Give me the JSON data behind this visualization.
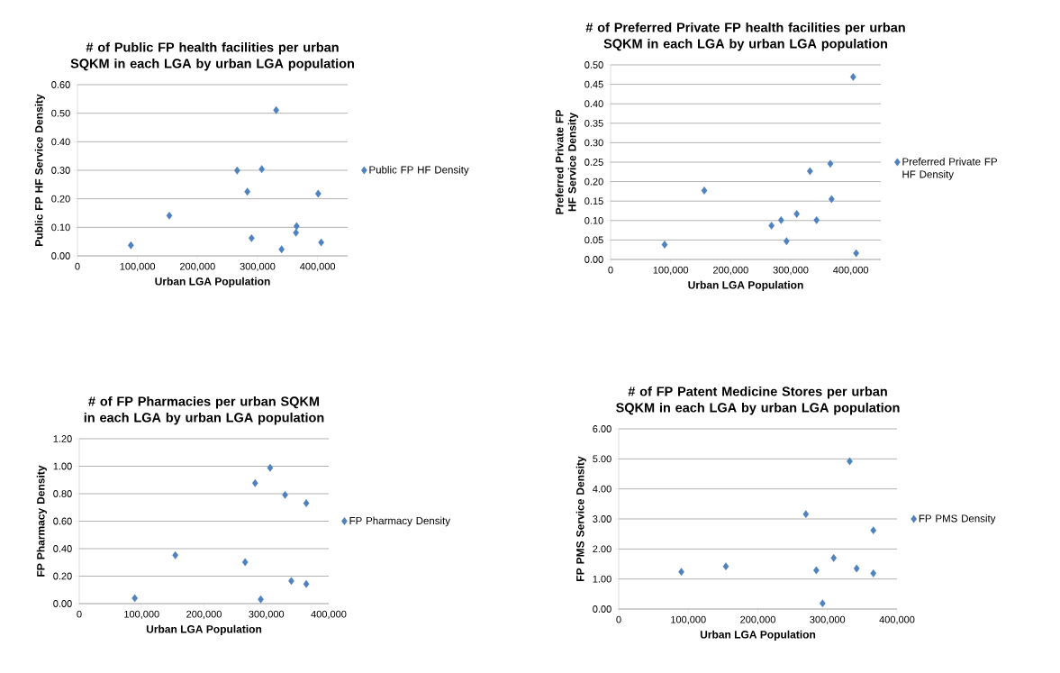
{
  "chart_data": [
    {
      "type": "scatter",
      "title": "# of Public FP health facilities per urban SQKM in each LGA by urban LGA population",
      "xlabel": "Urban LGA Population",
      "ylabel": "Public FP HF Service Density",
      "x": [
        89000,
        153000,
        266000,
        283000,
        307000,
        331000,
        290000,
        340000,
        365000,
        364000,
        401000,
        406000
      ],
      "series": [
        {
          "name": "Public FP HF Density",
          "color": "#4f81bd",
          "values": [
            0.037,
            0.141,
            0.299,
            0.225,
            0.304,
            0.511,
            0.062,
            0.023,
            0.104,
            0.081,
            0.218,
            0.047
          ]
        }
      ],
      "xlim": [
        0,
        450000
      ],
      "xticks": [
        0,
        {
          "value": 100000,
          "label": "100,000"
        },
        {
          "value": 200000,
          "label": "200,000"
        },
        {
          "value": 300000,
          "label": "300,000"
        },
        {
          "value": 400000,
          "label": "400,000"
        }
      ],
      "ylim": [
        0,
        0.6
      ],
      "yticks": [
        {
          "value": 0,
          "label": "0.00"
        },
        {
          "value": 0.1,
          "label": "0.10"
        },
        {
          "value": 0.2,
          "label": "0.20"
        },
        {
          "value": 0.3,
          "label": "0.30"
        },
        {
          "value": 0.4,
          "label": "0.40"
        },
        {
          "value": 0.5,
          "label": "0.50"
        },
        {
          "value": 0.6,
          "label": "0.60"
        }
      ],
      "grid": "y",
      "legend": "right",
      "marker": "diamond"
    },
    {
      "type": "scatter",
      "title": "# of Preferred Private FP health facilities per urban SQKM in each LGA by urban LGA population",
      "xlabel": "Urban LGA Population",
      "ylabel": "Preferred Private FP HF Service Density",
      "x": [
        90000,
        156000,
        268000,
        284000,
        293000,
        310000,
        332000,
        343000,
        366000,
        368000,
        404000,
        409000
      ],
      "series": [
        {
          "name": "Preferred Private FP HF Density",
          "color": "#4f81bd",
          "values": [
            0.038,
            0.177,
            0.087,
            0.101,
            0.047,
            0.117,
            0.227,
            0.101,
            0.246,
            0.155,
            0.469,
            0.016
          ]
        }
      ],
      "xlim": [
        0,
        450000
      ],
      "xticks": [
        0,
        {
          "value": 100000,
          "label": "100,000"
        },
        {
          "value": 200000,
          "label": "200,000"
        },
        {
          "value": 300000,
          "label": "300,000"
        },
        {
          "value": 400000,
          "label": "400,000"
        }
      ],
      "ylim": [
        0,
        0.5
      ],
      "yticks": [
        {
          "value": 0,
          "label": "0.00"
        },
        {
          "value": 0.05,
          "label": "0.05"
        },
        {
          "value": 0.1,
          "label": "0.10"
        },
        {
          "value": 0.15,
          "label": "0.15"
        },
        {
          "value": 0.2,
          "label": "0.20"
        },
        {
          "value": 0.25,
          "label": "0.25"
        },
        {
          "value": 0.3,
          "label": "0.30"
        },
        {
          "value": 0.35,
          "label": "0.35"
        },
        {
          "value": 0.4,
          "label": "0.40"
        },
        {
          "value": 0.45,
          "label": "0.45"
        },
        {
          "value": 0.5,
          "label": "0.50"
        }
      ],
      "grid": "y",
      "legend": "right",
      "marker": "diamond"
    },
    {
      "type": "scatter",
      "title": "# of FP Pharmacies per urban SQKM in each LGA by urban LGA population",
      "xlabel": "Urban LGA Population",
      "ylabel": "FP Pharmacy Density",
      "x": [
        89000,
        154000,
        266000,
        282000,
        291000,
        306000,
        330000,
        340000,
        364000,
        364000
      ],
      "series": [
        {
          "name": "FP Pharmacy Density",
          "color": "#4f81bd",
          "values": [
            0.04,
            0.352,
            0.302,
            0.877,
            0.031,
            0.989,
            0.791,
            0.165,
            0.731,
            0.143
          ]
        }
      ],
      "xlim": [
        0,
        400000
      ],
      "xticks": [
        0,
        {
          "value": 100000,
          "label": "100,000"
        },
        {
          "value": 200000,
          "label": "200,000"
        },
        {
          "value": 300000,
          "label": "300,000"
        },
        {
          "value": 400000,
          "label": "400,000"
        }
      ],
      "ylim": [
        0,
        1.2
      ],
      "yticks": [
        {
          "value": 0,
          "label": "0.00"
        },
        {
          "value": 0.2,
          "label": "0.20"
        },
        {
          "value": 0.4,
          "label": "0.40"
        },
        {
          "value": 0.6,
          "label": "0.60"
        },
        {
          "value": 0.8,
          "label": "0.80"
        },
        {
          "value": 1.0,
          "label": "1.00"
        },
        {
          "value": 1.2,
          "label": "1.20"
        }
      ],
      "grid": "y",
      "legend": "right",
      "marker": "diamond"
    },
    {
      "type": "scatter",
      "title": "# of FP Patent Medicine Stores per urban SQKM in each LGA by urban LGA population",
      "xlabel": "Urban LGA Population",
      "ylabel": "FP PMS Service Density",
      "x": [
        90000,
        154000,
        269000,
        284000,
        293000,
        309000,
        332000,
        342000,
        366000,
        366000
      ],
      "series": [
        {
          "name": "FP PMS Density",
          "color": "#4f81bd",
          "values": [
            1.24,
            1.42,
            3.16,
            1.29,
            0.19,
            1.7,
            4.92,
            1.35,
            2.62,
            1.19
          ]
        }
      ],
      "xlim": [
        0,
        400000
      ],
      "xticks": [
        0,
        {
          "value": 100000,
          "label": "100,000"
        },
        {
          "value": 200000,
          "label": "200,000"
        },
        {
          "value": 300000,
          "label": "300,000"
        },
        {
          "value": 400000,
          "label": "400,000"
        }
      ],
      "ylim": [
        0,
        6
      ],
      "yticks": [
        {
          "value": 0,
          "label": "0.00"
        },
        {
          "value": 1,
          "label": "1.00"
        },
        {
          "value": 2,
          "label": "2.00"
        },
        {
          "value": 3,
          "label": "3.00"
        },
        {
          "value": 4,
          "label": "4.00"
        },
        {
          "value": 5,
          "label": "5.00"
        },
        {
          "value": 6,
          "label": "6.00"
        }
      ],
      "grid": "y",
      "legend": "right",
      "marker": "diamond"
    }
  ]
}
